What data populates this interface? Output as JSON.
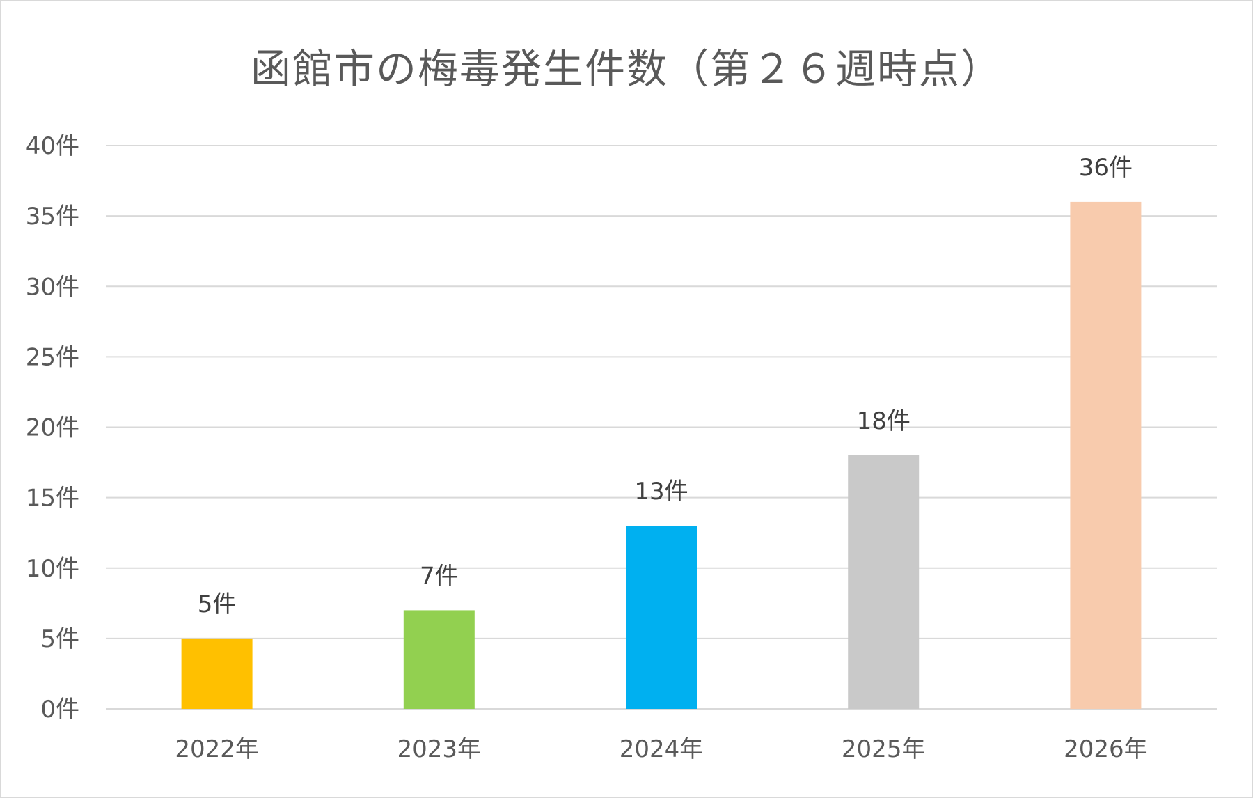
{
  "chart_data": {
    "type": "bar",
    "title": "函館市の梅毒発生件数（第２６週時点）",
    "xlabel": "",
    "ylabel": "",
    "categories": [
      "2022年",
      "2023年",
      "2024年",
      "2025年",
      "2026年"
    ],
    "values": [
      5,
      7,
      13,
      18,
      36
    ],
    "data_labels": [
      "5件",
      "7件",
      "13件",
      "18件",
      "36件"
    ],
    "bar_colors": [
      "#FFC000",
      "#92D050",
      "#00B0F0",
      "#C9C9C9",
      "#F8CBAD"
    ],
    "ylim": [
      0,
      40
    ],
    "y_ticks": [
      0,
      5,
      10,
      15,
      20,
      25,
      30,
      35,
      40
    ],
    "y_tick_labels": [
      "0件",
      "5件",
      "10件",
      "15件",
      "20件",
      "25件",
      "30件",
      "35件",
      "40件"
    ],
    "grid": true,
    "legend": "none"
  }
}
